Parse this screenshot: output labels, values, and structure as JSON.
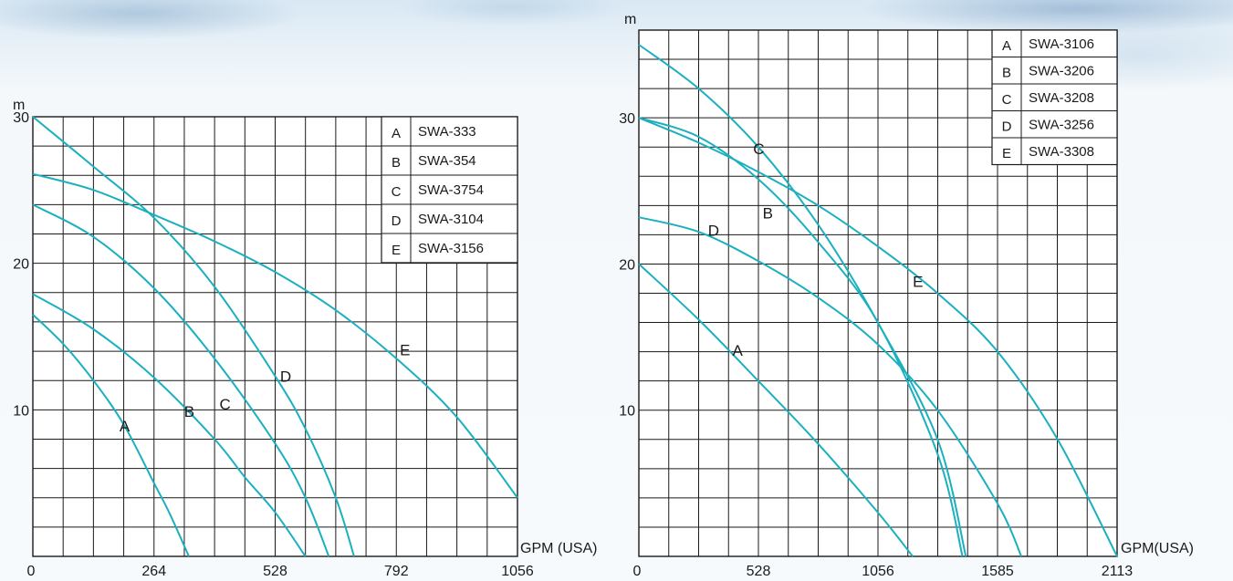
{
  "chart_data": [
    {
      "type": "line",
      "xlabel": "GPM (USA)",
      "ylabel": "m",
      "xlim": [
        0,
        1056
      ],
      "ylim": [
        0,
        30
      ],
      "x_ticks": [
        "0",
        "264",
        "528",
        "792",
        "1056"
      ],
      "y_ticks": [
        "10",
        "20",
        "30"
      ],
      "grid": true,
      "legend_position": "top-right",
      "legend": [
        {
          "key": "A",
          "model": "SWA-333"
        },
        {
          "key": "B",
          "model": "SWA-354"
        },
        {
          "key": "C",
          "model": "SWA-3754"
        },
        {
          "key": "D",
          "model": "SWA-3104"
        },
        {
          "key": "E",
          "model": "SWA-3156"
        }
      ],
      "series": [
        {
          "name": "A",
          "x": [
            0,
            66,
            132,
            198,
            264,
            297,
            340
          ],
          "y": [
            16.5,
            14.5,
            12,
            9,
            5,
            3,
            0
          ]
        },
        {
          "name": "B",
          "x": [
            0,
            132,
            264,
            396,
            462,
            528,
            594
          ],
          "y": [
            17.9,
            15.5,
            12.2,
            8,
            5.4,
            3,
            0
          ]
        },
        {
          "name": "C",
          "x": [
            0,
            132,
            264,
            396,
            528,
            594,
            645
          ],
          "y": [
            24,
            21.8,
            18.3,
            13.5,
            7.7,
            4,
            0
          ]
        },
        {
          "name": "D",
          "x": [
            0,
            132,
            264,
            396,
            528,
            594,
            660,
            700
          ],
          "y": [
            30,
            26.6,
            23.1,
            18.4,
            12.3,
            8.7,
            4,
            0
          ]
        },
        {
          "name": "E",
          "x": [
            0,
            132,
            264,
            396,
            528,
            660,
            792,
            924,
            1056
          ],
          "y": [
            26.1,
            25,
            23.3,
            21.5,
            19.4,
            16.8,
            13.5,
            9.5,
            4
          ]
        }
      ],
      "annotations": [
        {
          "text": "A",
          "x": 200,
          "y": 8.9
        },
        {
          "text": "B",
          "x": 341,
          "y": 9.9
        },
        {
          "text": "C",
          "x": 419,
          "y": 10.4
        },
        {
          "text": "D",
          "x": 551,
          "y": 12.3
        },
        {
          "text": "E",
          "x": 811,
          "y": 14.1
        }
      ]
    },
    {
      "type": "line",
      "xlabel": "GPM(USA)",
      "ylabel": "m",
      "xlim": [
        0,
        2113
      ],
      "ylim": [
        0,
        36
      ],
      "x_ticks": [
        "0",
        "528",
        "1056",
        "1585",
        "2113"
      ],
      "y_ticks": [
        "10",
        "20",
        "30"
      ],
      "grid": true,
      "legend_position": "top-right",
      "legend": [
        {
          "key": "A",
          "model": "SWA-3106"
        },
        {
          "key": "B",
          "model": "SWA-3206"
        },
        {
          "key": "C",
          "model": "SWA-3208"
        },
        {
          "key": "D",
          "model": "SWA-3256"
        },
        {
          "key": "E",
          "model": "SWA-3308"
        }
      ],
      "series": [
        {
          "name": "A",
          "x": [
            0,
            264,
            528,
            792,
            1056,
            1210
          ],
          "y": [
            20,
            16.2,
            12,
            7.7,
            3,
            0
          ]
        },
        {
          "name": "B",
          "x": [
            0,
            264,
            528,
            792,
            1056,
            1320,
            1430
          ],
          "y": [
            30,
            28.7,
            25.8,
            21.5,
            16,
            7,
            0
          ]
        },
        {
          "name": "C",
          "x": [
            0,
            264,
            528,
            792,
            1056,
            1320,
            1445
          ],
          "y": [
            35,
            32,
            28,
            22.7,
            16,
            8,
            0
          ]
        },
        {
          "name": "D",
          "x": [
            0,
            264,
            528,
            792,
            1056,
            1320,
            1585,
            1690
          ],
          "y": [
            23.2,
            22.2,
            20.2,
            17.7,
            14.5,
            10,
            3.6,
            0
          ]
        },
        {
          "name": "E",
          "x": [
            0,
            264,
            528,
            792,
            1056,
            1320,
            1585,
            1850,
            2113
          ],
          "y": [
            30,
            28.3,
            26.3,
            24,
            21.2,
            18,
            14,
            8,
            0
          ]
        }
      ],
      "annotations": [
        {
          "text": "A",
          "x": 436,
          "y": 14.1
        },
        {
          "text": "B",
          "x": 570,
          "y": 23.5
        },
        {
          "text": "C",
          "x": 530,
          "y": 27.9
        },
        {
          "text": "D",
          "x": 330,
          "y": 22.3
        },
        {
          "text": "E",
          "x": 1233,
          "y": 18.8
        }
      ]
    }
  ]
}
